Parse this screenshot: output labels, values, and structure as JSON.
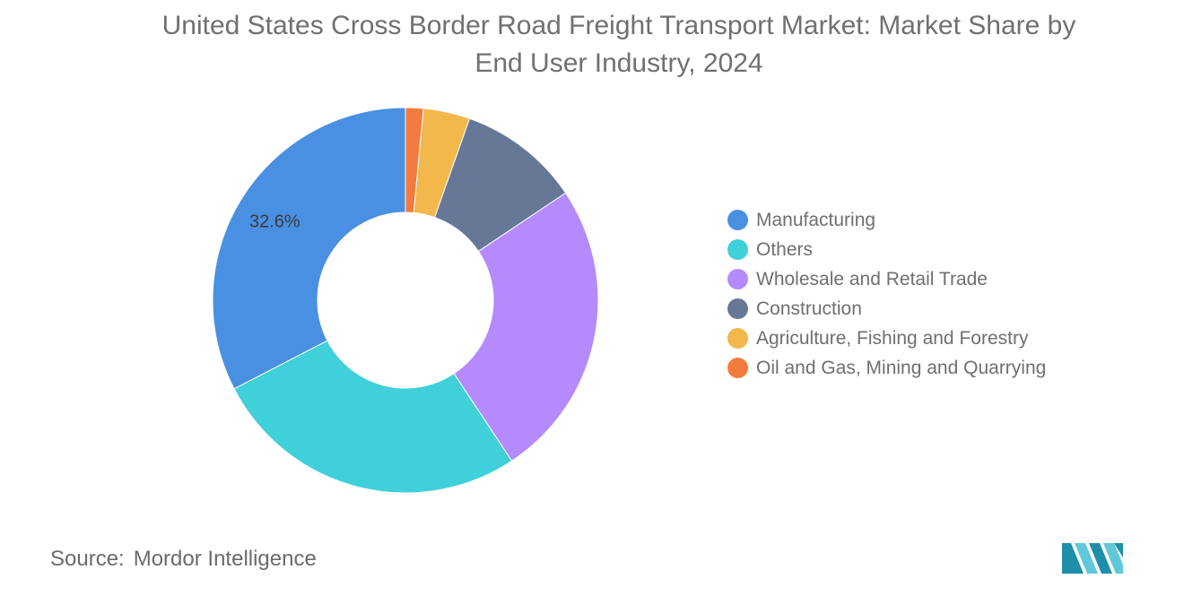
{
  "title_line1": "United States Cross Border Road Freight Transport Market: Market Share by",
  "title_line2": "End User Industry, 2024",
  "source_label": "Source:",
  "source_value": "Mordor Intelligence",
  "chart_data": {
    "type": "pie",
    "style": "donut",
    "title": "United States Cross Border Road Freight Transport Market: Market Share by End User Industry, 2024",
    "unit": "%",
    "legend_placement": "right",
    "start_angle_deg": 0,
    "direction": "clockwise",
    "slices": [
      {
        "name": "Oil and Gas, Mining and Quarrying",
        "value": 1.5,
        "color": "#f47b3e",
        "label": ""
      },
      {
        "name": "Agriculture, Fishing and Forestry",
        "value": 3.9,
        "color": "#f2b84b",
        "label": ""
      },
      {
        "name": "Construction",
        "value": 10.2,
        "color": "#667896",
        "label": ""
      },
      {
        "name": "Wholesale and Retail Trade",
        "value": 25.1,
        "color": "#b48afc",
        "label": ""
      },
      {
        "name": "Others",
        "value": 26.7,
        "color": "#3fd0d9",
        "label": ""
      },
      {
        "name": "Manufacturing",
        "value": 32.6,
        "color": "#4a90e2",
        "label": "32.6%"
      }
    ],
    "legend": [
      {
        "name": "Manufacturing",
        "color": "#4a90e2"
      },
      {
        "name": "Others",
        "color": "#3fd0d9"
      },
      {
        "name": "Wholesale and Retail Trade",
        "color": "#b48afc"
      },
      {
        "name": "Construction",
        "color": "#667896"
      },
      {
        "name": "Agriculture, Fishing and Forestry",
        "color": "#f2b84b"
      },
      {
        "name": "Oil and Gas, Mining and Quarrying",
        "color": "#f47b3e"
      }
    ]
  },
  "logo": {
    "icon": "mordor-intelligence-logo",
    "colors": [
      "#1f8ea8",
      "#5fc9d9"
    ]
  }
}
